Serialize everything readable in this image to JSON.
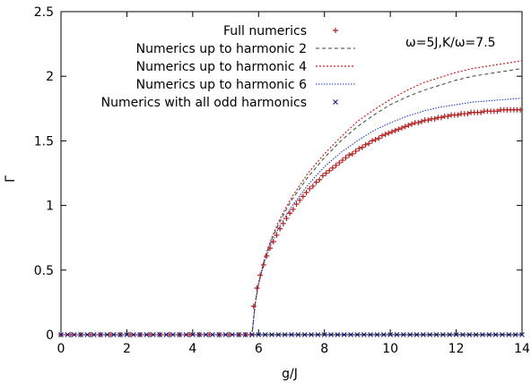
{
  "chart_data": {
    "type": "line",
    "xlabel": "g/J",
    "ylabel": "Γ",
    "xlim": [
      0,
      14
    ],
    "ylim": [
      0,
      2.5
    ],
    "xticks": [
      "0",
      "2",
      "4",
      "6",
      "8",
      "10",
      "12",
      "14"
    ],
    "yticks": [
      "0",
      "0.5",
      "1",
      "1.5",
      "2",
      "2.5"
    ],
    "annotation": "ω=5J,K/ω=7.5",
    "grid": false,
    "legend_position": "top-right",
    "series": [
      {
        "name": "Full numerics",
        "style": "markers-plus",
        "color": "#b22222",
        "x": [
          0,
          0.3,
          0.6,
          0.9,
          1.2,
          1.5,
          1.8,
          2.1,
          2.4,
          2.7,
          3,
          3.3,
          3.6,
          3.9,
          4.2,
          4.5,
          4.8,
          5.1,
          5.4,
          5.6,
          5.75,
          5.85,
          5.95,
          6.05,
          6.15,
          6.25,
          6.35,
          6.45,
          6.55,
          6.65,
          6.75,
          6.85,
          6.95,
          7.05,
          7.15,
          7.25,
          7.35,
          7.45,
          7.55,
          7.65,
          7.75,
          7.85,
          7.95,
          8.05,
          8.15,
          8.25,
          8.35,
          8.45,
          8.55,
          8.65,
          8.75,
          8.85,
          8.95,
          9.05,
          9.15,
          9.25,
          9.35,
          9.45,
          9.55,
          9.65,
          9.75,
          9.85,
          9.95,
          10.05,
          10.15,
          10.25,
          10.35,
          10.45,
          10.55,
          10.65,
          10.75,
          10.85,
          10.95,
          11.05,
          11.15,
          11.25,
          11.35,
          11.45,
          11.55,
          11.65,
          11.75,
          11.85,
          11.95,
          12.05,
          12.15,
          12.25,
          12.35,
          12.45,
          12.55,
          12.65,
          12.75,
          12.85,
          12.95,
          13.05,
          13.15,
          13.25,
          13.35,
          13.45,
          13.55,
          13.65,
          13.75,
          13.85,
          13.95
        ],
        "y": [
          0,
          0,
          0,
          0,
          0,
          0,
          0,
          0,
          0,
          0,
          0,
          0,
          0,
          0,
          0,
          0,
          0,
          0,
          0,
          0,
          0,
          0.22,
          0.36,
          0.46,
          0.54,
          0.61,
          0.67,
          0.72,
          0.77,
          0.82,
          0.86,
          0.9,
          0.94,
          0.97,
          1.01,
          1.04,
          1.07,
          1.1,
          1.13,
          1.15,
          1.18,
          1.2,
          1.23,
          1.25,
          1.27,
          1.29,
          1.31,
          1.33,
          1.35,
          1.37,
          1.39,
          1.4,
          1.42,
          1.44,
          1.45,
          1.47,
          1.48,
          1.5,
          1.51,
          1.52,
          1.54,
          1.55,
          1.56,
          1.57,
          1.58,
          1.59,
          1.6,
          1.61,
          1.62,
          1.63,
          1.64,
          1.64,
          1.65,
          1.66,
          1.66,
          1.67,
          1.67,
          1.68,
          1.68,
          1.69,
          1.69,
          1.7,
          1.7,
          1.7,
          1.71,
          1.71,
          1.71,
          1.72,
          1.72,
          1.72,
          1.72,
          1.73,
          1.73,
          1.73,
          1.73,
          1.73,
          1.74,
          1.74,
          1.74,
          1.74,
          1.74,
          1.74,
          1.74
        ]
      },
      {
        "name": "Numerics up to harmonic 2",
        "style": "dashed",
        "color": "#2f4f2f",
        "x": [
          0,
          5.8,
          5.9,
          6,
          6.2,
          6.4,
          6.6,
          6.8,
          7,
          7.5,
          8,
          8.5,
          9,
          9.5,
          10,
          10.5,
          11,
          11.5,
          12,
          12.5,
          13,
          13.5,
          14
        ],
        "y": [
          0,
          0,
          0.25,
          0.4,
          0.6,
          0.74,
          0.85,
          0.95,
          1.04,
          1.22,
          1.37,
          1.5,
          1.61,
          1.7,
          1.78,
          1.84,
          1.89,
          1.93,
          1.97,
          2,
          2.02,
          2.04,
          2.06
        ]
      },
      {
        "name": "Numerics up to harmonic 4",
        "style": "dotted-red",
        "color": "#cc2222",
        "x": [
          0,
          5.8,
          5.9,
          6,
          6.2,
          6.4,
          6.6,
          6.8,
          7,
          7.5,
          8,
          8.5,
          9,
          9.5,
          10,
          10.5,
          11,
          11.5,
          12,
          12.5,
          13,
          13.5,
          14
        ],
        "y": [
          0,
          0,
          0.25,
          0.4,
          0.61,
          0.75,
          0.87,
          0.97,
          1.06,
          1.25,
          1.4,
          1.53,
          1.65,
          1.74,
          1.82,
          1.89,
          1.95,
          1.99,
          2.03,
          2.06,
          2.08,
          2.1,
          2.12
        ]
      },
      {
        "name": "Numerics up to harmonic 6",
        "style": "dotted-blue",
        "color": "#1f3fbf",
        "x": [
          0,
          5.8,
          5.9,
          6,
          6.2,
          6.4,
          6.6,
          6.8,
          7,
          7.5,
          8,
          8.5,
          9,
          9.5,
          10,
          10.5,
          11,
          11.5,
          12,
          12.5,
          13,
          13.5,
          14
        ],
        "y": [
          0,
          0,
          0.24,
          0.39,
          0.58,
          0.71,
          0.82,
          0.91,
          0.99,
          1.16,
          1.3,
          1.41,
          1.5,
          1.58,
          1.64,
          1.69,
          1.73,
          1.76,
          1.78,
          1.8,
          1.81,
          1.82,
          1.83
        ]
      },
      {
        "name": "Numerics with all odd harmonics",
        "style": "markers-x",
        "color": "#1a237e",
        "x": [
          0,
          0.2,
          0.4,
          0.6,
          0.8,
          1,
          1.2,
          1.4,
          1.6,
          1.8,
          2,
          2.2,
          2.4,
          2.6,
          2.8,
          3,
          3.2,
          3.4,
          3.6,
          3.8,
          4,
          4.2,
          4.4,
          4.6,
          4.8,
          5,
          5.2,
          5.4,
          5.6,
          5.8,
          6,
          6.2,
          6.4,
          6.6,
          6.8,
          7,
          7.2,
          7.4,
          7.6,
          7.8,
          8,
          8.2,
          8.4,
          8.6,
          8.8,
          9,
          9.2,
          9.4,
          9.6,
          9.8,
          10,
          10.2,
          10.4,
          10.6,
          10.8,
          11,
          11.2,
          11.4,
          11.6,
          11.8,
          12,
          12.2,
          12.4,
          12.6,
          12.8,
          13,
          13.2,
          13.4,
          13.6,
          13.8,
          14
        ],
        "y": [
          0,
          0,
          0,
          0,
          0,
          0,
          0,
          0,
          0,
          0,
          0,
          0,
          0,
          0,
          0,
          0,
          0,
          0,
          0,
          0,
          0,
          0,
          0,
          0,
          0,
          0,
          0,
          0,
          0,
          0,
          0,
          0,
          0,
          0,
          0,
          0,
          0,
          0,
          0,
          0,
          0,
          0,
          0,
          0,
          0,
          0,
          0,
          0,
          0,
          0,
          0,
          0,
          0,
          0,
          0,
          0,
          0,
          0,
          0,
          0,
          0,
          0,
          0,
          0,
          0,
          0,
          0,
          0,
          0,
          0,
          0
        ]
      }
    ]
  }
}
